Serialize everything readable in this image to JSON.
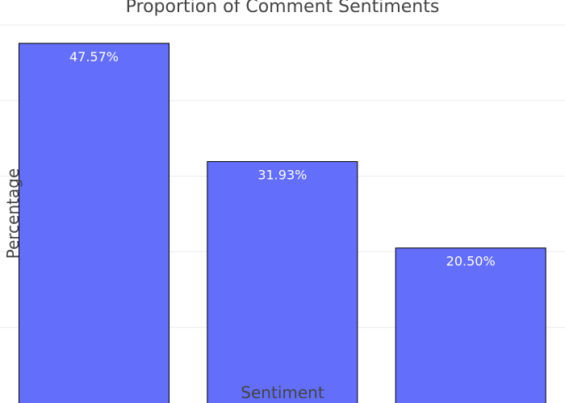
{
  "chart_data": {
    "type": "bar",
    "title": "Proportion of Comment Sentiments",
    "xlabel": "Sentiment",
    "ylabel": "Percentage",
    "ylim": [
      0,
      50
    ],
    "grid": true,
    "bar_color": "#636efa",
    "bar_outline_color": "#000000",
    "values": [
      47.57,
      31.93,
      20.5
    ],
    "data_labels": [
      "47.57%",
      "31.93%",
      "20.50%"
    ]
  }
}
